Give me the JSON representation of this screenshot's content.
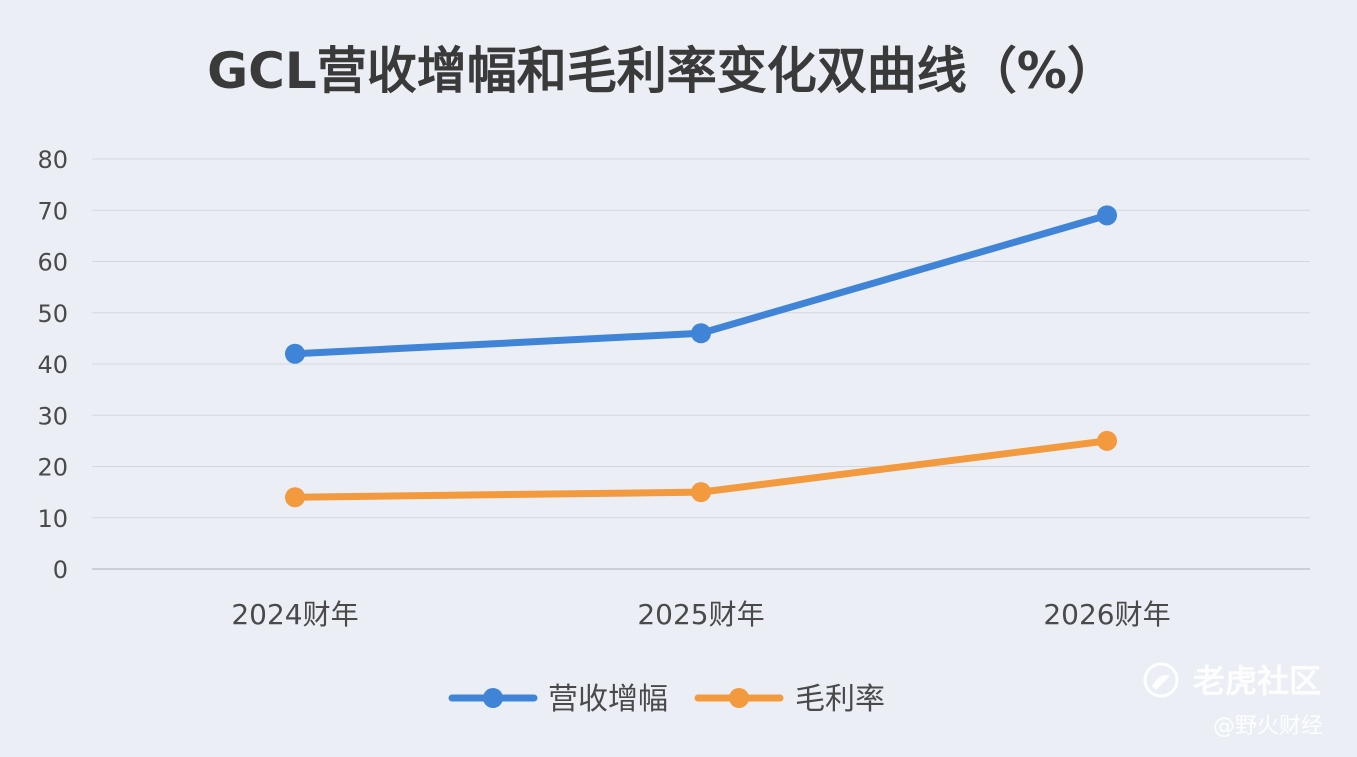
{
  "chart_data": {
    "type": "line",
    "title": "GCL营收增幅和毛利率变化双曲线（%）",
    "categories": [
      "2024财年",
      "2025财年",
      "2026财年"
    ],
    "ylim": [
      0,
      80
    ],
    "yticks": [
      0,
      10,
      20,
      30,
      40,
      50,
      60,
      70,
      80
    ],
    "grid": true,
    "legend_position": "bottom",
    "series": [
      {
        "name": "营收增幅",
        "values": [
          42,
          46,
          69
        ],
        "color": "#3f84d6"
      },
      {
        "name": "毛利率",
        "values": [
          14,
          15,
          25
        ],
        "color": "#f29a3d"
      }
    ]
  },
  "watermark": {
    "main": "老虎社区",
    "sub": "@野火财经",
    "icon": "tiger-community-logo"
  }
}
